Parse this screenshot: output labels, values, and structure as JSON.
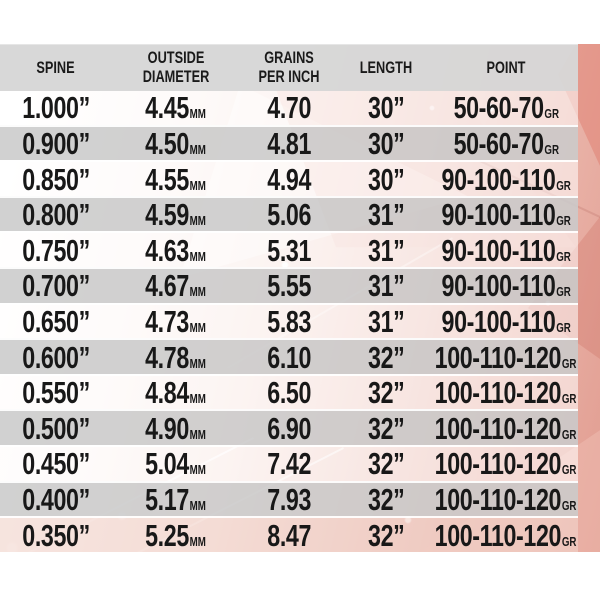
{
  "palette": {
    "page_background": "#ffffff",
    "header_bg": "#d7d7d7",
    "row_gray": "#cbcbcb",
    "row_light": "#ffffff",
    "row_pink": "#f2d6cd",
    "accent_salmon": "#e19c90",
    "text": "#181818"
  },
  "chart_data": {
    "type": "table",
    "columns": [
      {
        "id": "spine",
        "label": "SPINE"
      },
      {
        "id": "od",
        "label": "OUTSIDE DIAMETER"
      },
      {
        "id": "gpi",
        "label": "GRAINS PER INCH"
      },
      {
        "id": "length",
        "label": "LENGTH"
      },
      {
        "id": "point",
        "label": "POINT"
      }
    ],
    "units": {
      "outside_diameter": "MM",
      "point": "GR"
    },
    "rows": [
      {
        "spine": "1.000”",
        "od": "4.45",
        "od_unit": "MM",
        "gpi": "4.70",
        "length": "30”",
        "point": "50-60-70",
        "point_unit": "GR"
      },
      {
        "spine": "0.900”",
        "od": "4.50",
        "od_unit": "MM",
        "gpi": "4.81",
        "length": "30”",
        "point": "50-60-70",
        "point_unit": "GR"
      },
      {
        "spine": "0.850”",
        "od": "4.55",
        "od_unit": "MM",
        "gpi": "4.94",
        "length": "30”",
        "point": "90-100-110",
        "point_unit": "GR"
      },
      {
        "spine": "0.800”",
        "od": "4.59",
        "od_unit": "MM",
        "gpi": "5.06",
        "length": "31”",
        "point": "90-100-110",
        "point_unit": "GR"
      },
      {
        "spine": "0.750”",
        "od": "4.63",
        "od_unit": "MM",
        "gpi": "5.31",
        "length": "31”",
        "point": "90-100-110",
        "point_unit": "GR"
      },
      {
        "spine": "0.700”",
        "od": "4.67",
        "od_unit": "MM",
        "gpi": "5.55",
        "length": "31”",
        "point": "90-100-110",
        "point_unit": "GR"
      },
      {
        "spine": "0.650”",
        "od": "4.73",
        "od_unit": "MM",
        "gpi": "5.83",
        "length": "31”",
        "point": "90-100-110",
        "point_unit": "GR"
      },
      {
        "spine": "0.600”",
        "od": "4.78",
        "od_unit": "MM",
        "gpi": "6.10",
        "length": "32”",
        "point": "100-110-120",
        "point_unit": "GR"
      },
      {
        "spine": "0.550”",
        "od": "4.84",
        "od_unit": "MM",
        "gpi": "6.50",
        "length": "32”",
        "point": "100-110-120",
        "point_unit": "GR"
      },
      {
        "spine": "0.500”",
        "od": "4.90",
        "od_unit": "MM",
        "gpi": "6.90",
        "length": "32”",
        "point": "100-110-120",
        "point_unit": "GR"
      },
      {
        "spine": "0.450”",
        "od": "5.04",
        "od_unit": "MM",
        "gpi": "7.42",
        "length": "32”",
        "point": "100-110-120",
        "point_unit": "GR"
      },
      {
        "spine": "0.400”",
        "od": "5.17",
        "od_unit": "MM",
        "gpi": "7.93",
        "length": "32”",
        "point": "100-110-120",
        "point_unit": "GR"
      },
      {
        "spine": "0.350”",
        "od": "5.25",
        "od_unit": "MM",
        "gpi": "8.47",
        "length": "32”",
        "point": "100-110-120",
        "point_unit": "GR"
      }
    ]
  }
}
